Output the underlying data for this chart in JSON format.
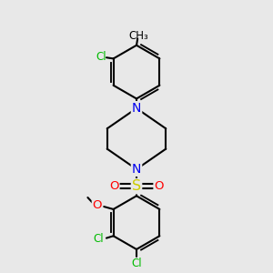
{
  "bg_color": "#e8e8e8",
  "bond_color": "#000000",
  "bond_width": 1.5,
  "atom_colors": {
    "N": "#0000ee",
    "O": "#ff0000",
    "S": "#cccc00",
    "Cl": "#00bb00"
  },
  "font_size_atom": 8.5,
  "font_size_label": 7.5,
  "figsize": [
    3.0,
    3.0
  ],
  "dpi": 100
}
